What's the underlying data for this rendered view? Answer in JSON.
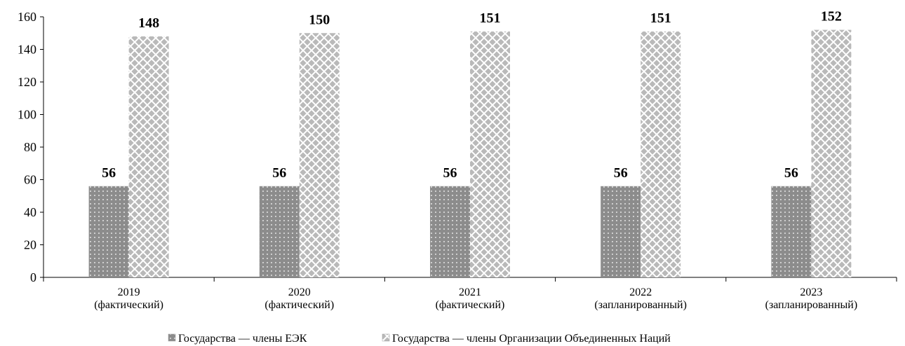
{
  "chart_data": {
    "type": "bar",
    "categories": [
      [
        "2019",
        "(фактический)"
      ],
      [
        "2020",
        "(фактический)"
      ],
      [
        "2021",
        "(фактический)"
      ],
      [
        "2022",
        "(запланированный)"
      ],
      [
        "2023",
        "(запланированный)"
      ]
    ],
    "series": [
      {
        "name": "Государства — члены ЕЭК",
        "values": [
          56,
          56,
          56,
          56,
          56
        ],
        "color": "#8c8c8c",
        "pattern": "dots"
      },
      {
        "name": "Государства — члены Организации Объединенных Наций",
        "values": [
          148,
          150,
          151,
          151,
          152
        ],
        "color": "#bdbdbd",
        "pattern": "crosshatch"
      }
    ],
    "ylim": [
      0,
      160
    ],
    "yticks": [
      0,
      20,
      40,
      60,
      80,
      100,
      120,
      140,
      160
    ],
    "title": "",
    "xlabel": "",
    "ylabel": "",
    "grid": false,
    "legend_position": "bottom-center",
    "data_labels": true
  }
}
